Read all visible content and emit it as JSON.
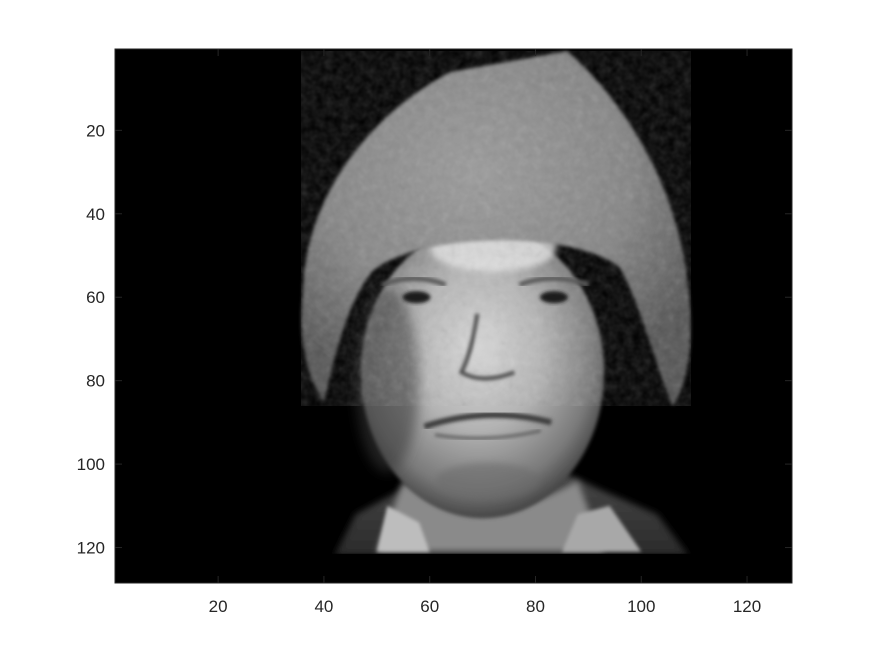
{
  "figure": {
    "background": "#ffffff"
  },
  "chart_data": {
    "type": "heatmap",
    "subtype": "grayscale image (imagesc)",
    "colormap": "gray",
    "content_description": "",
    "title": "",
    "xlabel": "",
    "ylabel": "",
    "xlim": [
      0.5,
      128.5
    ],
    "ylim": [
      0.5,
      128.5
    ],
    "y_direction": "reverse",
    "x_ticks": [
      20,
      40,
      60,
      80,
      100,
      120
    ],
    "x_tick_labels": [
      "20",
      "40",
      "60",
      "80",
      "100",
      "120"
    ],
    "y_ticks": [
      20,
      40,
      60,
      80,
      100,
      120
    ],
    "y_tick_labels": [
      "20",
      "40",
      "60",
      "80",
      "100",
      "120"
    ],
    "image_size": [
      128,
      128
    ],
    "grid": false,
    "legend": "none",
    "colors": {
      "axis": "#262626",
      "text": "#262626",
      "background": "#000000"
    }
  }
}
